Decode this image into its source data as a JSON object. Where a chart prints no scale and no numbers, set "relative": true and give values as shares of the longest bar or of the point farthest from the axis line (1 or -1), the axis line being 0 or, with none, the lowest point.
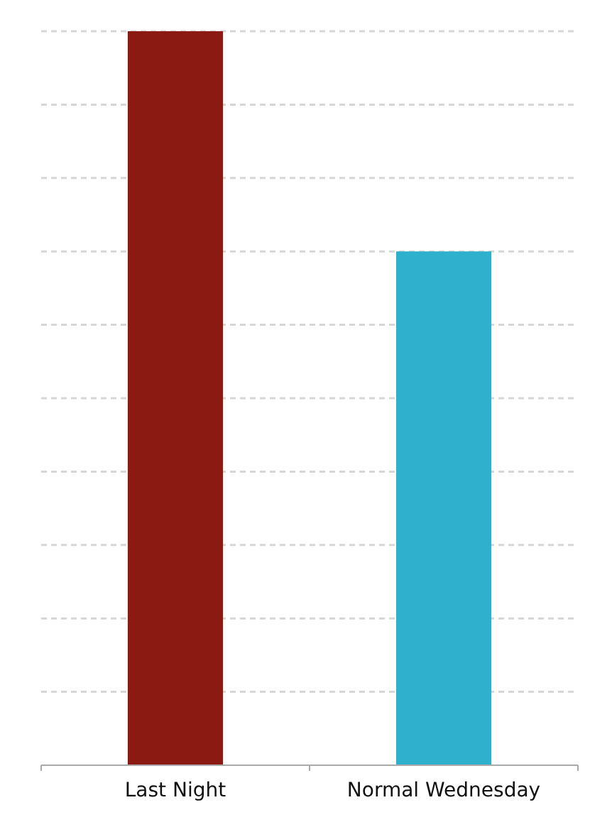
{
  "chart_data": {
    "type": "bar",
    "relative": true,
    "categories": [
      "Last Night",
      "Normal Wednesday"
    ],
    "values": [
      1,
      0.7
    ],
    "colors": [
      "#8b1a12",
      "#2fb0cc"
    ],
    "grid": "y"
  }
}
